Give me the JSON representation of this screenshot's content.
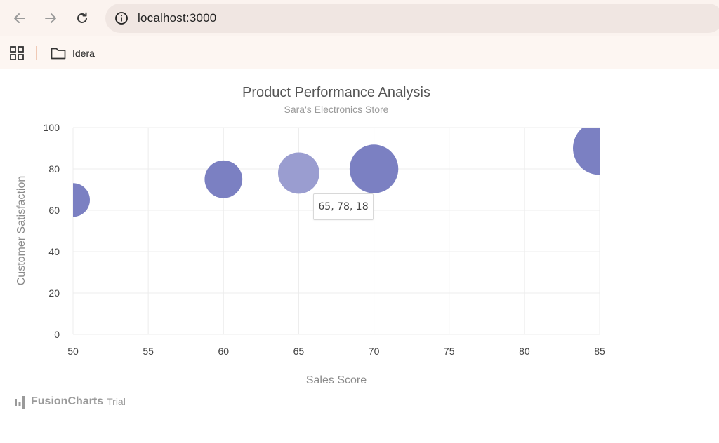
{
  "browser": {
    "url": "localhost:3000",
    "bookmarks": [
      {
        "label": "Idera"
      }
    ]
  },
  "watermark": {
    "brand": "FusionCharts",
    "suffix": "Trial"
  },
  "tooltip": {
    "text": "65, 78, 18"
  },
  "chart_data": {
    "type": "bubble",
    "title": "Product Performance Analysis",
    "subtitle": "Sara's Electronics Store",
    "xlabel": "Sales Score",
    "ylabel": "Customer Satisfaction",
    "xlim": [
      50,
      85
    ],
    "ylim": [
      0,
      100
    ],
    "x_ticks": [
      50,
      55,
      60,
      65,
      70,
      75,
      80,
      85
    ],
    "y_ticks": [
      0,
      20,
      40,
      60,
      80,
      100
    ],
    "grid": true,
    "series": [
      {
        "color": "#7b80c2",
        "points": [
          {
            "x": 50,
            "y": 65,
            "z": 12
          },
          {
            "x": 60,
            "y": 75,
            "z": 15
          },
          {
            "x": 65,
            "y": 78,
            "z": 18
          },
          {
            "x": 70,
            "y": 80,
            "z": 25
          },
          {
            "x": 85,
            "y": 90,
            "z": 30
          }
        ]
      }
    ],
    "highlighted_point": 2,
    "highlight_color": "#9a9dd0"
  }
}
